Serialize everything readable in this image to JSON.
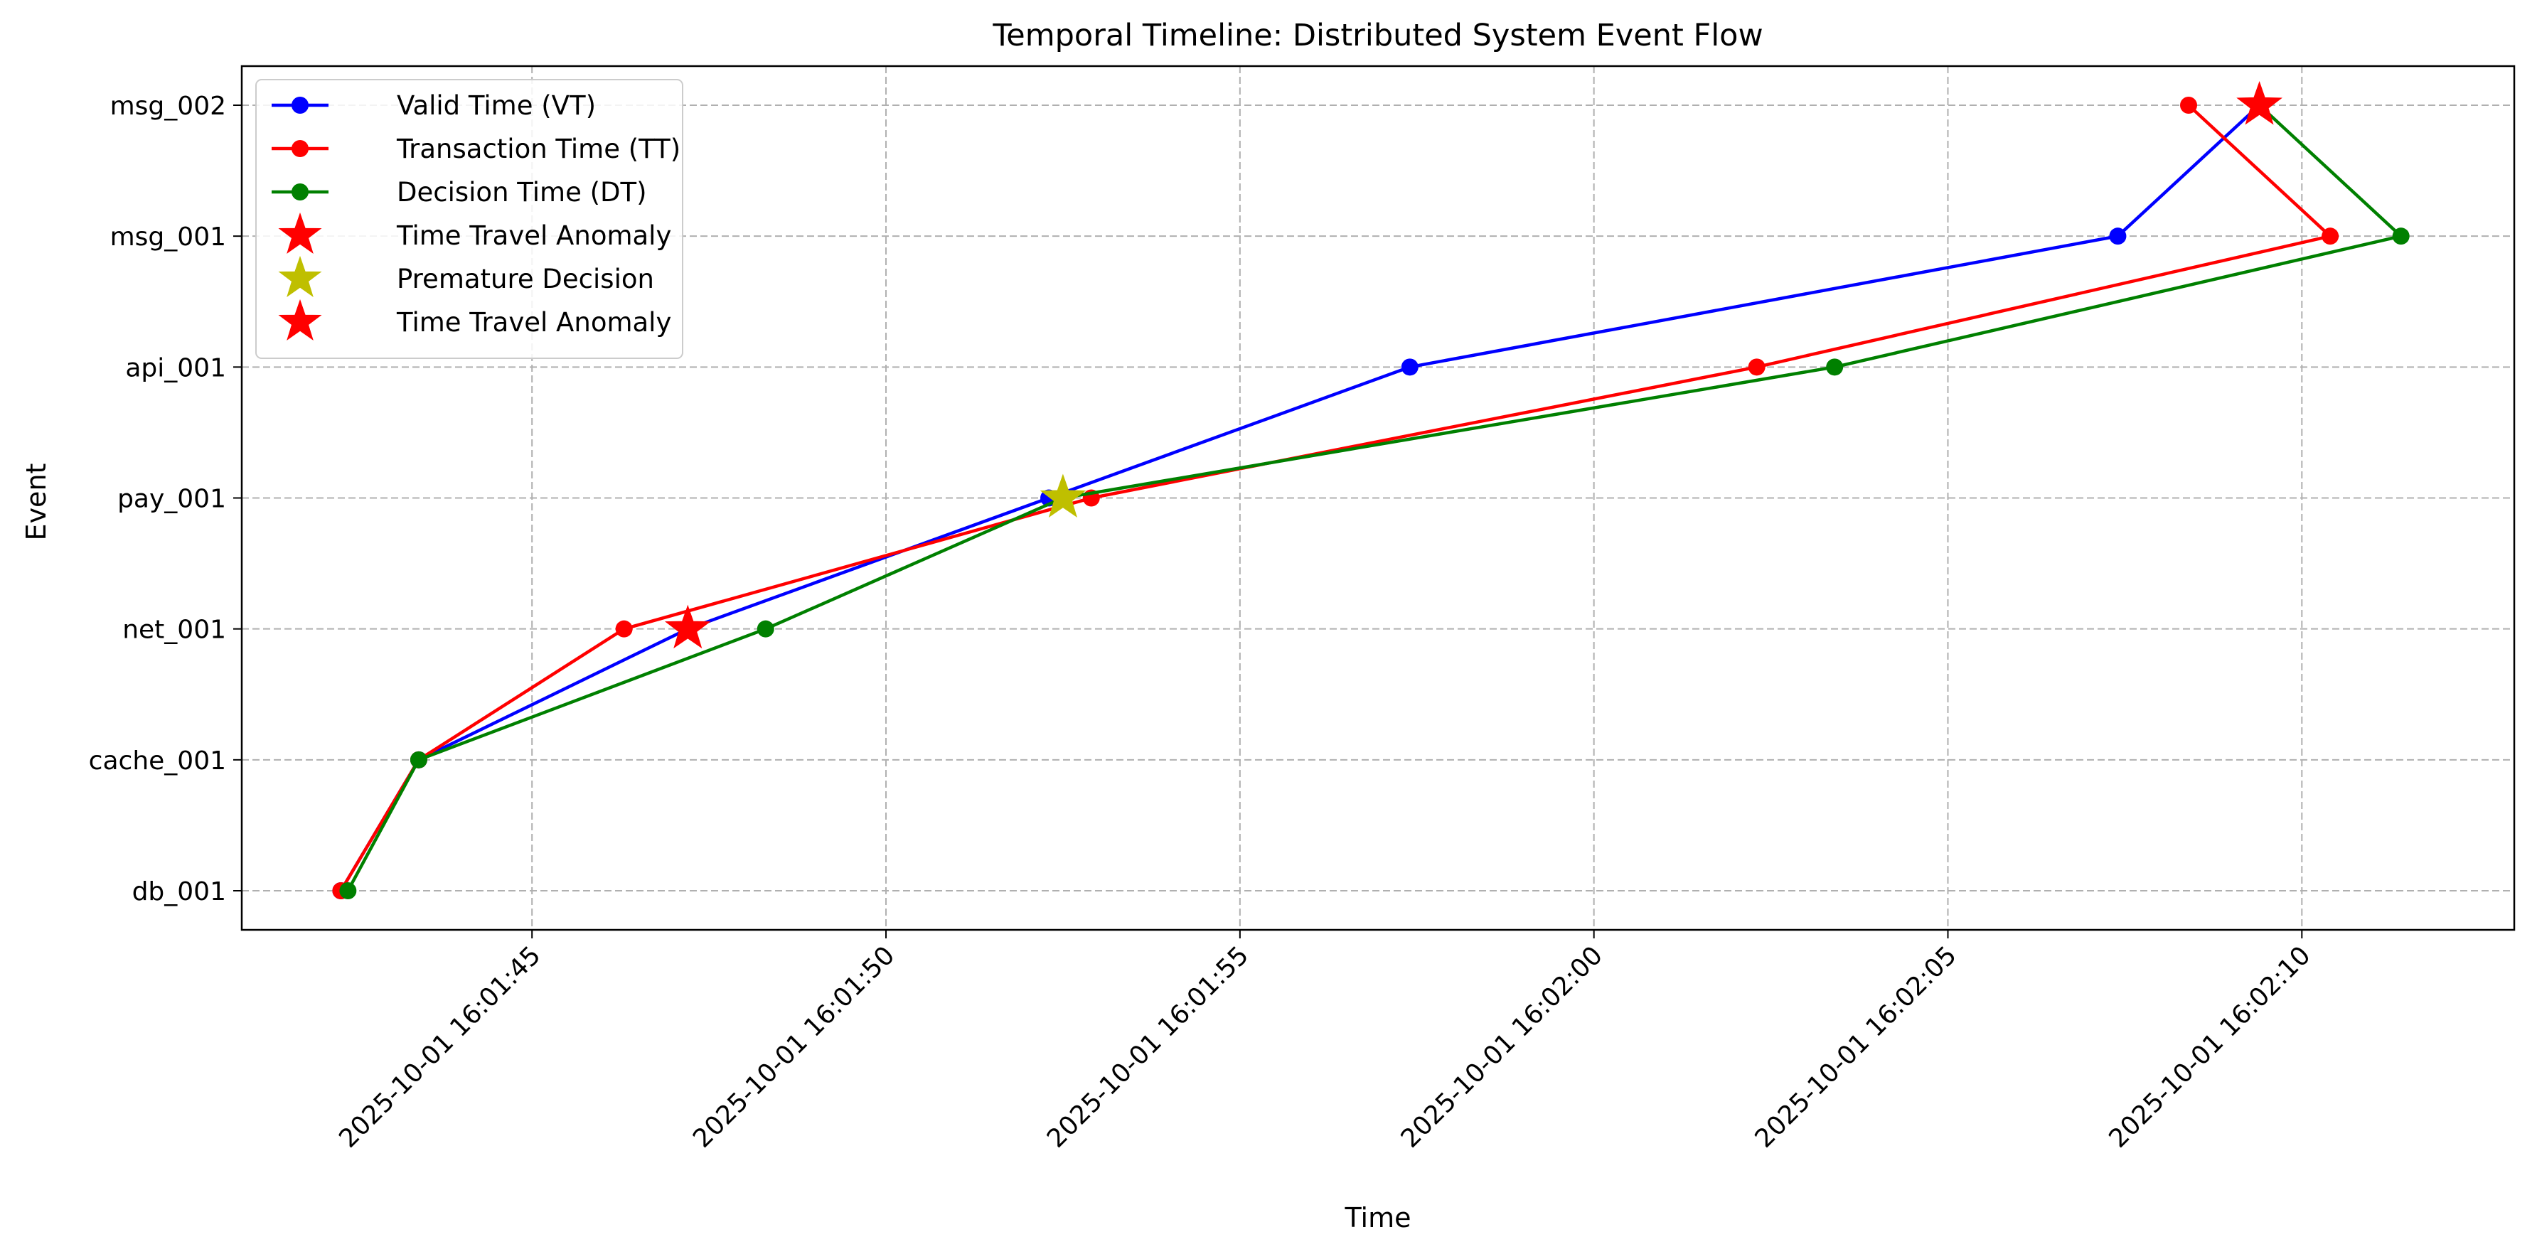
{
  "chart_data": {
    "type": "line",
    "title": "Temporal Timeline: Distributed System Event Flow",
    "xlabel": "Time",
    "ylabel": "Event",
    "categories": [
      "db_001",
      "cache_001",
      "net_001",
      "pay_001",
      "api_001",
      "msg_001",
      "msg_002"
    ],
    "x_ticks": [
      {
        "value": "2025-10-01 16:01:45",
        "label": "2025-10-01 16:01:45"
      },
      {
        "value": "2025-10-01 16:01:50",
        "label": "2025-10-01 16:01:50"
      },
      {
        "value": "2025-10-01 16:01:55",
        "label": "2025-10-01 16:01:55"
      },
      {
        "value": "2025-10-01 16:02:00",
        "label": "2025-10-01 16:02:00"
      },
      {
        "value": "2025-10-01 16:02:05",
        "label": "2025-10-01 16:02:05"
      },
      {
        "value": "2025-10-01 16:02:10",
        "label": "2025-10-01 16:02:10"
      }
    ],
    "xlim": [
      "2025-10-01 16:01:40.9",
      "2025-10-01 16:02:13.0"
    ],
    "grid": true,
    "legend_position": "top-left",
    "series": [
      {
        "name": "Valid Time (VT)",
        "color": "#0000ff",
        "marker": "circle",
        "points": [
          {
            "x": "2025-10-01 16:01:42.3",
            "y": "db_001"
          },
          {
            "x": "2025-10-01 16:01:43.4",
            "y": "cache_001"
          },
          {
            "x": "2025-10-01 16:01:47.2",
            "y": "net_001"
          },
          {
            "x": "2025-10-01 16:01:52.3",
            "y": "pay_001"
          },
          {
            "x": "2025-10-01 16:01:57.4",
            "y": "api_001"
          },
          {
            "x": "2025-10-01 16:02:07.4",
            "y": "msg_001"
          },
          {
            "x": "2025-10-01 16:02:09.4",
            "y": "msg_002"
          }
        ]
      },
      {
        "name": "Transaction Time (TT)",
        "color": "#ff0000",
        "marker": "circle",
        "points": [
          {
            "x": "2025-10-01 16:01:42.3",
            "y": "db_001"
          },
          {
            "x": "2025-10-01 16:01:43.4",
            "y": "cache_001"
          },
          {
            "x": "2025-10-01 16:01:46.3",
            "y": "net_001"
          },
          {
            "x": "2025-10-01 16:01:52.9",
            "y": "pay_001"
          },
          {
            "x": "2025-10-01 16:02:02.3",
            "y": "api_001"
          },
          {
            "x": "2025-10-01 16:02:10.4",
            "y": "msg_001"
          },
          {
            "x": "2025-10-01 16:02:08.4",
            "y": "msg_002"
          }
        ]
      },
      {
        "name": "Decision Time (DT)",
        "color": "#008000",
        "marker": "circle",
        "points": [
          {
            "x": "2025-10-01 16:01:42.4",
            "y": "db_001"
          },
          {
            "x": "2025-10-01 16:01:43.4",
            "y": "cache_001"
          },
          {
            "x": "2025-10-01 16:01:48.3",
            "y": "net_001"
          },
          {
            "x": "2025-10-01 16:01:52.5",
            "y": "pay_001"
          },
          {
            "x": "2025-10-01 16:02:03.4",
            "y": "api_001"
          },
          {
            "x": "2025-10-01 16:02:11.4",
            "y": "msg_001"
          },
          {
            "x": "2025-10-01 16:02:09.4",
            "y": "msg_002"
          }
        ]
      }
    ],
    "markers": [
      {
        "name": "Time Travel Anomaly",
        "color": "#ff0000",
        "marker": "star",
        "points": [
          {
            "x": "2025-10-01 16:01:47.2",
            "y": "net_001"
          }
        ]
      },
      {
        "name": "Premature Decision",
        "color": "#bfbf00",
        "marker": "star",
        "points": [
          {
            "x": "2025-10-01 16:01:52.5",
            "y": "pay_001"
          }
        ]
      },
      {
        "name": "Time Travel Anomaly",
        "color": "#ff0000",
        "marker": "star",
        "points": [
          {
            "x": "2025-10-01 16:02:09.4",
            "y": "msg_002"
          }
        ]
      }
    ]
  }
}
